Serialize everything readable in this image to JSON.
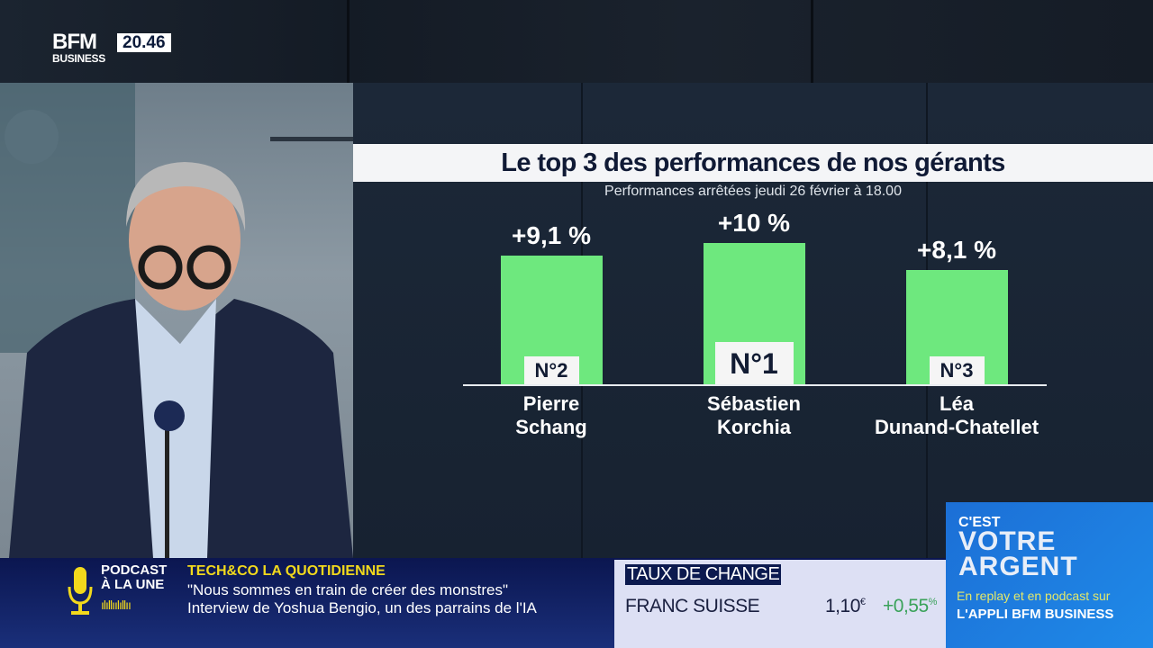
{
  "channel": {
    "logo_top": "BFM",
    "logo_bottom": "BUSINESS",
    "time": "20.46"
  },
  "chart_data": {
    "type": "bar",
    "title": "Le top 3 des performances de nos gérants",
    "subtitle": "Performances arrêtées jeudi 26 février à 18.00",
    "categories": [
      "Pierre Schang",
      "Sébastien Korchia",
      "Léa Dunand-Chatellet"
    ],
    "name_lines": [
      [
        "Pierre",
        "Schang"
      ],
      [
        "Sébastien",
        "Korchia"
      ],
      [
        "Léa",
        "Dunand-Chatellet"
      ]
    ],
    "values": [
      9.1,
      10,
      8.1
    ],
    "data_labels": [
      "+9,1 %",
      "+10 %",
      "+8,1 %"
    ],
    "ranks": [
      "N°2",
      "N°1",
      "N°3"
    ],
    "unit": "%",
    "ylim": [
      0,
      10
    ],
    "bar_color": "#6ee87e",
    "grid": false
  },
  "ticker": {
    "podcast_label_1": "PODCAST",
    "podcast_label_2": "À LA UNE",
    "show_title": "TECH&CO LA QUOTIDIENNE",
    "line1": "\"Nous sommes en train de créer des monstres\"",
    "line2": "Interview de Yoshua Bengio, un des parrains de l'IA"
  },
  "fx": {
    "header": "TAUX DE CHANGE",
    "name": "FRANC SUISSE",
    "value": "1,10",
    "currency": "€",
    "change": "+0,55",
    "change_unit": "%",
    "change_color": "#3aa25a"
  },
  "promo": {
    "line1": "C'EST",
    "line2": "VOTRE",
    "line3": "ARGENT",
    "line4": "En replay et en podcast sur",
    "line5": "L'APPLI BFM BUSINESS"
  }
}
